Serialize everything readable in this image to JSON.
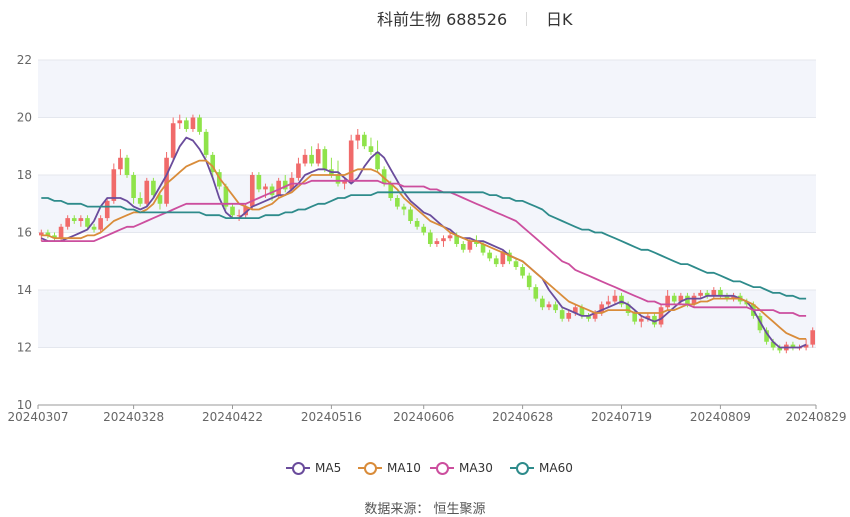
{
  "title": {
    "main": "科前生物 688526",
    "sub": "日K"
  },
  "source_label": "数据来源：  恒生聚源",
  "legend": [
    {
      "name": "MA5",
      "color": "#6a4c9c"
    },
    {
      "name": "MA10",
      "color": "#d98c3a"
    },
    {
      "name": "MA30",
      "color": "#cc4e9e"
    },
    {
      "name": "MA60",
      "color": "#2e8b8b"
    }
  ],
  "colors": {
    "up": "#f06a6a",
    "down": "#8fe34a",
    "band": "#f3f5fb",
    "grid": "#e4e7ee"
  },
  "chart_data": {
    "type": "candlestick",
    "ylim": [
      10,
      22
    ],
    "yticks": [
      10,
      12,
      14,
      16,
      18,
      20,
      22
    ],
    "x_tick_labels": [
      "20240307",
      "20240328",
      "20240422",
      "20240516",
      "20240606",
      "20240628",
      "20240719",
      "20240809",
      "20240829"
    ],
    "x_tick_index": [
      0,
      14,
      29,
      44,
      58,
      73,
      88,
      103,
      117
    ],
    "candles_ohlc": [
      [
        15.9,
        16.1,
        15.7,
        16.0
      ],
      [
        16.0,
        16.1,
        15.8,
        15.9
      ],
      [
        15.9,
        16.0,
        15.7,
        15.8
      ],
      [
        15.8,
        16.3,
        15.7,
        16.2
      ],
      [
        16.2,
        16.6,
        16.1,
        16.5
      ],
      [
        16.5,
        16.6,
        16.3,
        16.4
      ],
      [
        16.4,
        16.6,
        16.2,
        16.5
      ],
      [
        16.5,
        16.6,
        16.1,
        16.2
      ],
      [
        16.2,
        16.3,
        16.0,
        16.1
      ],
      [
        16.1,
        16.6,
        16.0,
        16.5
      ],
      [
        16.5,
        17.2,
        16.4,
        17.1
      ],
      [
        17.1,
        18.4,
        17.0,
        18.2
      ],
      [
        18.2,
        18.9,
        18.0,
        18.6
      ],
      [
        18.6,
        18.7,
        17.9,
        18.0
      ],
      [
        18.0,
        18.1,
        17.0,
        17.2
      ],
      [
        17.2,
        17.4,
        16.9,
        17.0
      ],
      [
        17.0,
        17.9,
        16.9,
        17.8
      ],
      [
        17.8,
        17.9,
        17.2,
        17.3
      ],
      [
        17.3,
        17.4,
        16.8,
        17.0
      ],
      [
        17.0,
        18.8,
        16.9,
        18.6
      ],
      [
        18.6,
        20.0,
        18.5,
        19.8
      ],
      [
        19.8,
        20.1,
        19.6,
        19.9
      ],
      [
        19.9,
        20.0,
        19.5,
        19.6
      ],
      [
        19.6,
        20.1,
        19.5,
        20.0
      ],
      [
        20.0,
        20.1,
        19.4,
        19.5
      ],
      [
        19.5,
        19.6,
        18.6,
        18.7
      ],
      [
        18.7,
        18.8,
        17.9,
        18.1
      ],
      [
        18.1,
        18.2,
        17.5,
        17.6
      ],
      [
        17.6,
        17.7,
        16.8,
        16.9
      ],
      [
        16.9,
        17.0,
        16.5,
        16.6
      ],
      [
        16.6,
        16.8,
        16.4,
        16.6
      ],
      [
        16.6,
        17.0,
        16.5,
        16.9
      ],
      [
        16.9,
        18.1,
        16.8,
        18.0
      ],
      [
        18.0,
        18.1,
        17.4,
        17.5
      ],
      [
        17.5,
        17.7,
        17.2,
        17.6
      ],
      [
        17.6,
        17.7,
        17.1,
        17.3
      ],
      [
        17.3,
        17.9,
        17.2,
        17.8
      ],
      [
        17.8,
        18.0,
        17.4,
        17.5
      ],
      [
        17.5,
        18.1,
        17.4,
        17.9
      ],
      [
        17.9,
        18.6,
        17.8,
        18.4
      ],
      [
        18.4,
        18.9,
        18.3,
        18.7
      ],
      [
        18.7,
        19.0,
        18.3,
        18.4
      ],
      [
        18.4,
        19.1,
        18.3,
        18.9
      ],
      [
        18.9,
        19.0,
        18.1,
        18.2
      ],
      [
        18.2,
        18.6,
        17.9,
        18.0
      ],
      [
        18.0,
        18.5,
        17.6,
        17.7
      ],
      [
        17.7,
        17.9,
        17.5,
        17.8
      ],
      [
        17.8,
        19.4,
        17.7,
        19.2
      ],
      [
        19.2,
        19.6,
        18.9,
        19.4
      ],
      [
        19.4,
        19.5,
        18.9,
        19.0
      ],
      [
        19.0,
        19.3,
        18.7,
        18.8
      ],
      [
        18.8,
        19.2,
        18.1,
        18.2
      ],
      [
        18.2,
        18.3,
        17.6,
        17.7
      ],
      [
        17.7,
        17.8,
        17.1,
        17.2
      ],
      [
        17.2,
        17.3,
        16.8,
        16.9
      ],
      [
        16.9,
        17.0,
        16.6,
        16.8
      ],
      [
        16.8,
        16.9,
        16.3,
        16.4
      ],
      [
        16.4,
        16.5,
        16.1,
        16.2
      ],
      [
        16.2,
        16.3,
        15.9,
        16.0
      ],
      [
        16.0,
        16.1,
        15.5,
        15.6
      ],
      [
        15.6,
        15.8,
        15.5,
        15.7
      ],
      [
        15.7,
        15.9,
        15.5,
        15.8
      ],
      [
        15.8,
        16.0,
        15.7,
        15.9
      ],
      [
        15.9,
        16.0,
        15.5,
        15.6
      ],
      [
        15.6,
        15.7,
        15.3,
        15.4
      ],
      [
        15.4,
        15.8,
        15.3,
        15.7
      ],
      [
        15.7,
        15.9,
        15.5,
        15.6
      ],
      [
        15.6,
        15.7,
        15.2,
        15.3
      ],
      [
        15.3,
        15.4,
        15.0,
        15.1
      ],
      [
        15.1,
        15.2,
        14.8,
        14.9
      ],
      [
        14.9,
        15.4,
        14.8,
        15.3
      ],
      [
        15.3,
        15.4,
        14.9,
        15.0
      ],
      [
        15.0,
        15.1,
        14.7,
        14.8
      ],
      [
        14.8,
        14.9,
        14.4,
        14.5
      ],
      [
        14.5,
        14.6,
        14.0,
        14.1
      ],
      [
        14.1,
        14.2,
        13.6,
        13.7
      ],
      [
        13.7,
        13.8,
        13.3,
        13.4
      ],
      [
        13.4,
        13.6,
        13.3,
        13.5
      ],
      [
        13.5,
        13.6,
        13.2,
        13.3
      ],
      [
        13.3,
        13.4,
        12.9,
        13.0
      ],
      [
        13.0,
        13.3,
        12.9,
        13.2
      ],
      [
        13.2,
        13.5,
        13.1,
        13.4
      ],
      [
        13.4,
        13.5,
        13.0,
        13.1
      ],
      [
        13.1,
        13.2,
        12.9,
        13.0
      ],
      [
        13.0,
        13.3,
        12.9,
        13.2
      ],
      [
        13.2,
        13.6,
        13.1,
        13.5
      ],
      [
        13.5,
        13.8,
        13.4,
        13.6
      ],
      [
        13.6,
        14.0,
        13.5,
        13.8
      ],
      [
        13.8,
        13.9,
        13.4,
        13.5
      ],
      [
        13.5,
        13.6,
        13.1,
        13.2
      ],
      [
        13.2,
        13.3,
        12.8,
        12.9
      ],
      [
        12.9,
        13.1,
        12.7,
        13.0
      ],
      [
        13.0,
        13.2,
        12.9,
        13.1
      ],
      [
        13.1,
        13.2,
        12.7,
        12.8
      ],
      [
        12.8,
        13.5,
        12.7,
        13.4
      ],
      [
        13.4,
        14.0,
        13.3,
        13.8
      ],
      [
        13.8,
        13.9,
        13.5,
        13.6
      ],
      [
        13.6,
        13.9,
        13.5,
        13.8
      ],
      [
        13.8,
        13.9,
        13.4,
        13.5
      ],
      [
        13.5,
        13.9,
        13.4,
        13.8
      ],
      [
        13.8,
        14.0,
        13.7,
        13.9
      ],
      [
        13.9,
        14.0,
        13.7,
        13.8
      ],
      [
        13.8,
        14.1,
        13.7,
        14.0
      ],
      [
        14.0,
        14.1,
        13.7,
        13.8
      ],
      [
        13.8,
        13.9,
        13.6,
        13.7
      ],
      [
        13.7,
        13.9,
        13.6,
        13.8
      ],
      [
        13.8,
        13.9,
        13.5,
        13.6
      ],
      [
        13.6,
        13.7,
        13.4,
        13.5
      ],
      [
        13.5,
        13.6,
        13.0,
        13.1
      ],
      [
        13.1,
        13.2,
        12.5,
        12.6
      ],
      [
        12.6,
        12.7,
        12.1,
        12.2
      ],
      [
        12.2,
        12.3,
        11.9,
        12.0
      ],
      [
        12.0,
        12.1,
        11.8,
        11.9
      ],
      [
        11.9,
        12.2,
        11.8,
        12.1
      ],
      [
        12.1,
        12.2,
        11.9,
        12.0
      ],
      [
        12.0,
        12.1,
        11.9,
        12.0
      ],
      [
        12.0,
        12.3,
        11.9,
        12.1
      ],
      [
        12.1,
        12.7,
        12.0,
        12.6
      ]
    ],
    "series": [
      {
        "name": "MA5",
        "values": [
          15.8,
          15.7,
          15.7,
          15.7,
          15.8,
          15.9,
          16.0,
          16.1,
          16.4,
          16.9,
          17.2,
          17.2,
          17.2,
          17.1,
          16.9,
          16.8,
          16.9,
          17.2,
          17.6,
          18.0,
          18.5,
          19.0,
          19.3,
          19.2,
          18.9,
          18.5,
          17.9,
          17.2,
          16.7,
          16.5,
          16.5,
          16.7,
          16.9,
          17.0,
          17.1,
          17.2,
          17.3,
          17.3,
          17.5,
          17.7,
          18.0,
          18.1,
          18.2,
          18.2,
          18.1,
          18.1,
          17.9,
          17.7,
          17.9,
          18.3,
          18.6,
          18.8,
          18.6,
          18.2,
          17.8,
          17.4,
          17.1,
          16.9,
          16.7,
          16.6,
          16.4,
          16.2,
          16.1,
          15.9,
          15.8,
          15.8,
          15.7,
          15.7,
          15.6,
          15.5,
          15.4,
          15.2,
          15.1,
          15.0,
          14.8,
          14.6,
          14.4,
          14.0,
          13.7,
          13.4,
          13.3,
          13.2,
          13.1,
          13.1,
          13.2,
          13.3,
          13.4,
          13.5,
          13.6,
          13.5,
          13.3,
          13.1,
          13.0,
          12.9,
          13.0,
          13.2,
          13.4,
          13.6,
          13.7,
          13.7,
          13.7,
          13.8,
          13.8,
          13.8,
          13.8,
          13.8,
          13.7,
          13.6,
          13.3,
          12.9,
          12.5,
          12.2,
          12.0,
          12.0,
          12.0,
          12.0,
          12.1
        ]
      },
      {
        "name": "MA10",
        "values": [
          15.9,
          15.9,
          15.8,
          15.8,
          15.8,
          15.8,
          15.8,
          15.9,
          15.9,
          16.0,
          16.2,
          16.4,
          16.5,
          16.6,
          16.7,
          16.7,
          16.8,
          17.0,
          17.4,
          17.7,
          17.9,
          18.1,
          18.3,
          18.4,
          18.5,
          18.5,
          18.3,
          17.9,
          17.6,
          17.3,
          17.0,
          16.9,
          16.8,
          16.8,
          16.9,
          17.0,
          17.2,
          17.3,
          17.4,
          17.6,
          17.8,
          18.0,
          18.0,
          18.0,
          18.0,
          18.0,
          18.0,
          18.1,
          18.2,
          18.2,
          18.2,
          18.1,
          17.9,
          17.7,
          17.5,
          17.2,
          17.0,
          16.8,
          16.6,
          16.4,
          16.3,
          16.2,
          16.0,
          15.9,
          15.8,
          15.7,
          15.7,
          15.6,
          15.5,
          15.4,
          15.3,
          15.2,
          15.1,
          15.0,
          14.8,
          14.6,
          14.4,
          14.2,
          14.0,
          13.8,
          13.6,
          13.5,
          13.4,
          13.3,
          13.2,
          13.2,
          13.3,
          13.3,
          13.3,
          13.3,
          13.2,
          13.2,
          13.2,
          13.2,
          13.2,
          13.3,
          13.3,
          13.4,
          13.5,
          13.5,
          13.6,
          13.6,
          13.7,
          13.7,
          13.7,
          13.7,
          13.7,
          13.6,
          13.5,
          13.3,
          13.1,
          12.9,
          12.7,
          12.5,
          12.4,
          12.3,
          12.3
        ]
      },
      {
        "name": "MA30",
        "values": [
          15.7,
          15.7,
          15.7,
          15.7,
          15.7,
          15.7,
          15.7,
          15.7,
          15.7,
          15.8,
          15.9,
          16.0,
          16.1,
          16.2,
          16.2,
          16.3,
          16.4,
          16.5,
          16.6,
          16.7,
          16.8,
          16.9,
          17.0,
          17.0,
          17.0,
          17.0,
          17.0,
          17.0,
          17.0,
          17.0,
          17.0,
          17.0,
          17.1,
          17.2,
          17.3,
          17.4,
          17.5,
          17.6,
          17.7,
          17.7,
          17.7,
          17.8,
          17.8,
          17.8,
          17.8,
          17.8,
          17.8,
          17.8,
          17.8,
          17.8,
          17.8,
          17.8,
          17.7,
          17.7,
          17.7,
          17.6,
          17.6,
          17.6,
          17.6,
          17.5,
          17.5,
          17.4,
          17.4,
          17.3,
          17.2,
          17.1,
          17.0,
          16.9,
          16.8,
          16.7,
          16.6,
          16.5,
          16.4,
          16.2,
          16.0,
          15.8,
          15.6,
          15.4,
          15.2,
          15.0,
          14.9,
          14.7,
          14.6,
          14.5,
          14.4,
          14.3,
          14.2,
          14.1,
          14.0,
          13.9,
          13.8,
          13.7,
          13.6,
          13.6,
          13.5,
          13.5,
          13.5,
          13.5,
          13.5,
          13.4,
          13.4,
          13.4,
          13.4,
          13.4,
          13.4,
          13.4,
          13.4,
          13.4,
          13.3,
          13.3,
          13.3,
          13.3,
          13.2,
          13.2,
          13.2,
          13.1,
          13.1
        ]
      },
      {
        "name": "MA60",
        "values": [
          17.2,
          17.2,
          17.1,
          17.1,
          17.0,
          17.0,
          17.0,
          16.9,
          16.9,
          16.9,
          16.9,
          16.9,
          16.9,
          16.8,
          16.8,
          16.7,
          16.7,
          16.7,
          16.7,
          16.7,
          16.7,
          16.7,
          16.7,
          16.7,
          16.7,
          16.6,
          16.6,
          16.6,
          16.5,
          16.5,
          16.5,
          16.5,
          16.5,
          16.5,
          16.6,
          16.6,
          16.6,
          16.7,
          16.7,
          16.8,
          16.8,
          16.9,
          17.0,
          17.0,
          17.1,
          17.2,
          17.2,
          17.3,
          17.3,
          17.3,
          17.3,
          17.4,
          17.4,
          17.4,
          17.4,
          17.4,
          17.4,
          17.4,
          17.4,
          17.4,
          17.4,
          17.4,
          17.4,
          17.4,
          17.4,
          17.4,
          17.4,
          17.4,
          17.3,
          17.3,
          17.2,
          17.2,
          17.1,
          17.1,
          17.0,
          16.9,
          16.8,
          16.6,
          16.5,
          16.4,
          16.3,
          16.2,
          16.1,
          16.1,
          16.0,
          16.0,
          15.9,
          15.8,
          15.7,
          15.6,
          15.5,
          15.4,
          15.4,
          15.3,
          15.2,
          15.1,
          15.0,
          14.9,
          14.9,
          14.8,
          14.7,
          14.6,
          14.6,
          14.5,
          14.4,
          14.3,
          14.3,
          14.2,
          14.1,
          14.1,
          14.0,
          13.9,
          13.9,
          13.8,
          13.8,
          13.7,
          13.7
        ]
      }
    ]
  }
}
